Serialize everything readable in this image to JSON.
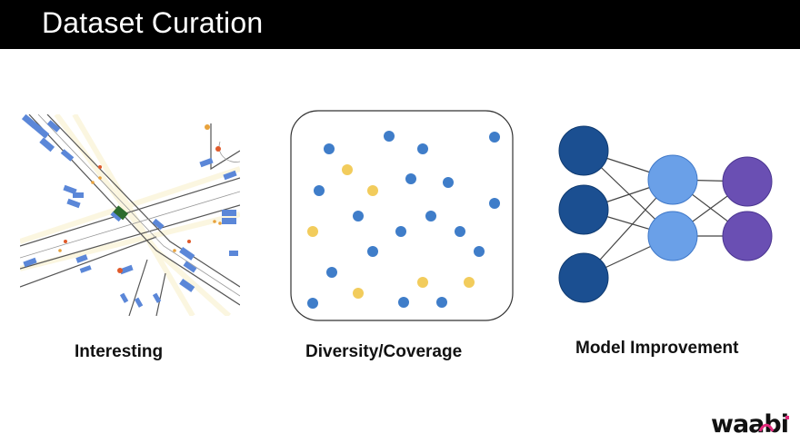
{
  "slide": {
    "title": "Dataset Curation"
  },
  "panels": [
    {
      "caption": "Interesting",
      "illustration": "road-intersection-scene"
    },
    {
      "caption": "Diversity/Coverage",
      "illustration": "scatter-dot-cluster"
    },
    {
      "caption": "Model Improvement",
      "illustration": "neural-network"
    }
  ],
  "colors": {
    "title_bar": "#000000",
    "dot_blue": "#3f7dc9",
    "dot_yellow": "#f2cc5c",
    "nn_input": "#1b4f91",
    "nn_hidden": "#6aa0e8",
    "nn_output": "#6a4fb3",
    "logo_accent": "#e0287a"
  },
  "logo": {
    "text": "waabi"
  }
}
